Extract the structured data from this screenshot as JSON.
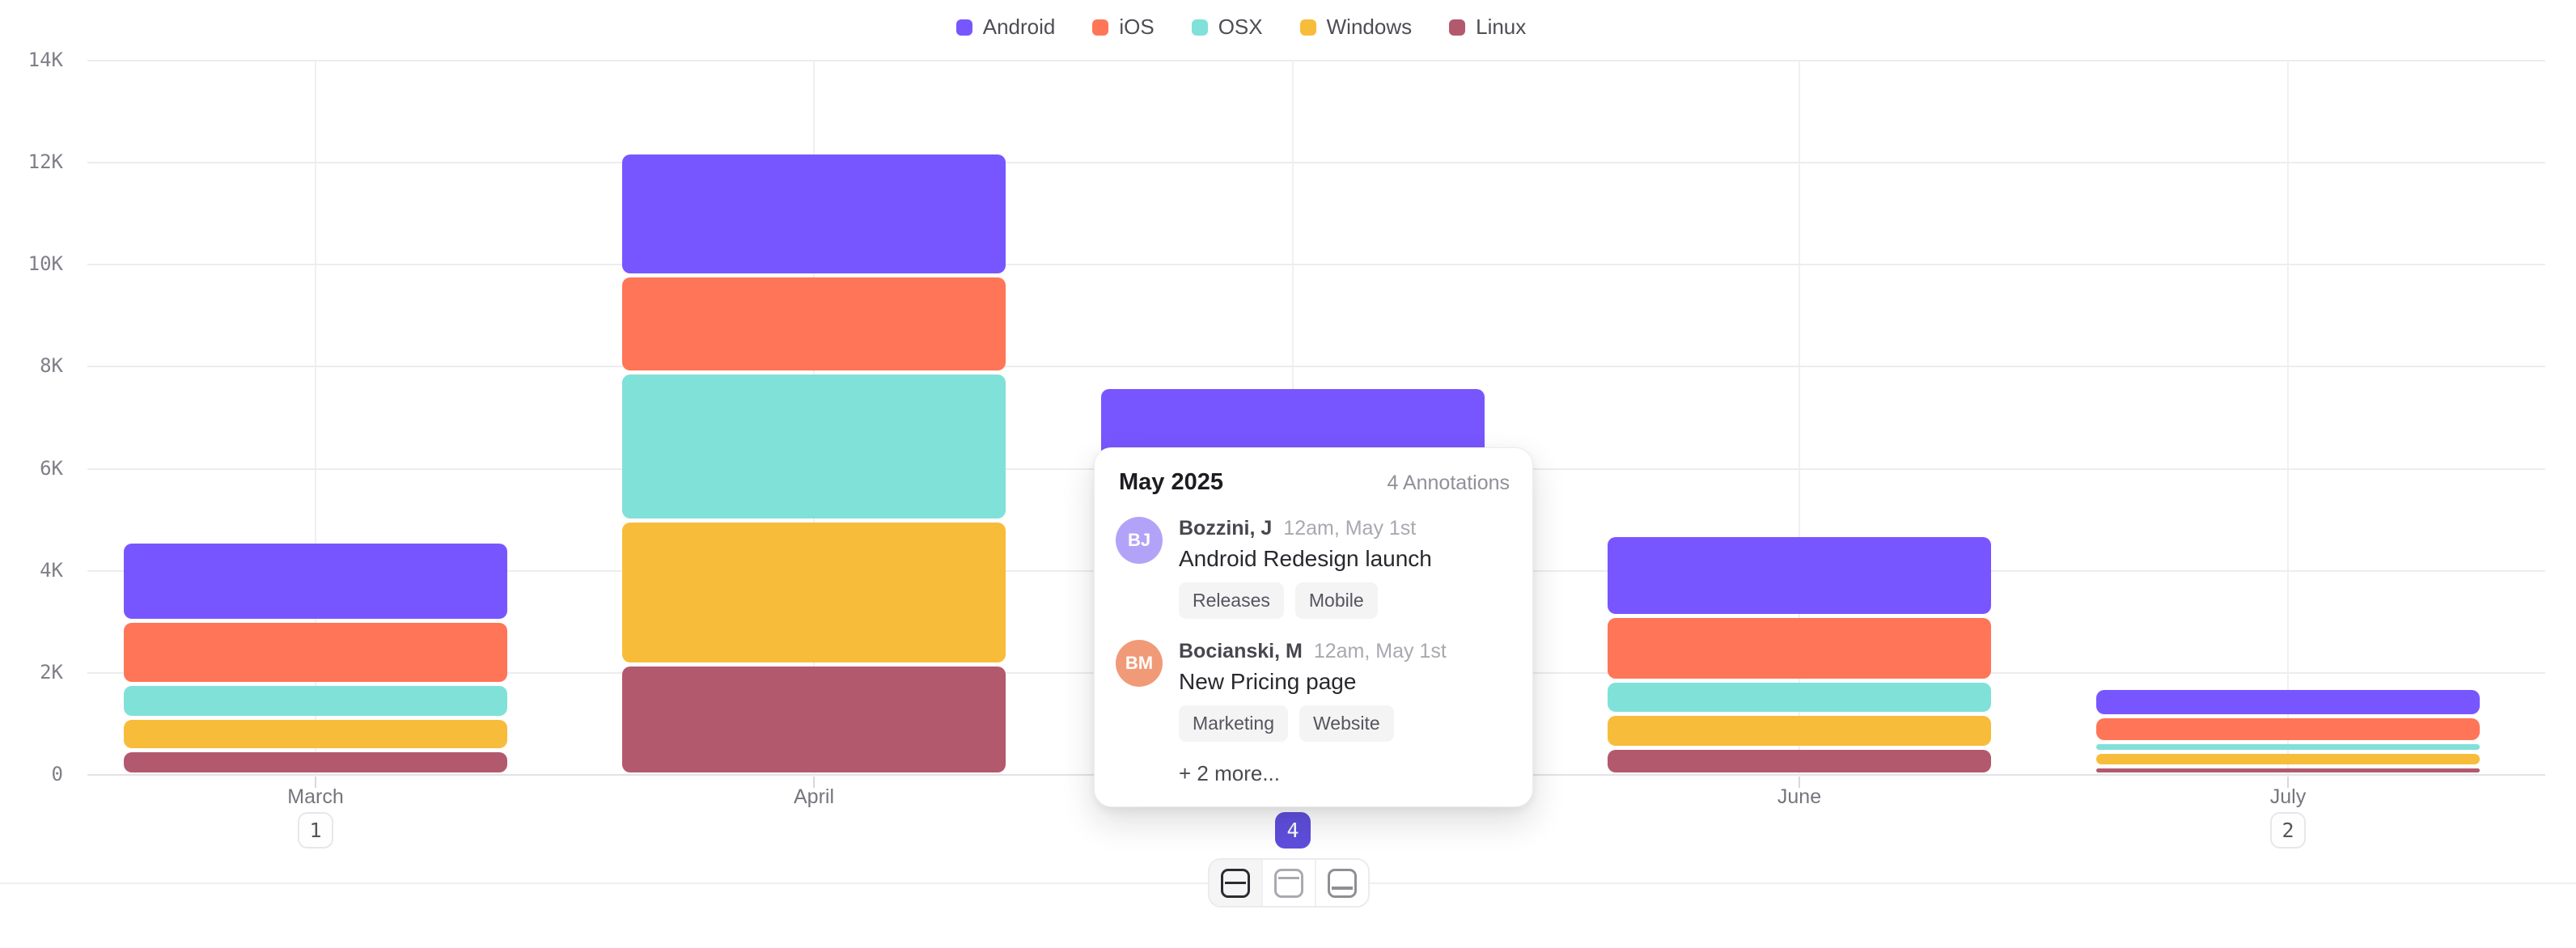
{
  "chart_data": {
    "type": "bar",
    "stacked": true,
    "title": "",
    "categories": [
      "March",
      "April",
      "May",
      "June",
      "July"
    ],
    "series": [
      {
        "name": "Android",
        "color": "#7856FF",
        "values": [
          1560,
          2410,
          2300,
          1580,
          540
        ]
      },
      {
        "name": "iOS",
        "color": "#FF7557",
        "values": [
          1230,
          1900,
          1750,
          1270,
          520
        ]
      },
      {
        "name": "OSX",
        "color": "#80E1D9",
        "values": [
          670,
          2900,
          1500,
          650,
          190
        ]
      },
      {
        "name": "Windows",
        "color": "#F8BC3B",
        "values": [
          630,
          2820,
          1300,
          670,
          280
        ]
      },
      {
        "name": "Linux",
        "color": "#B2596E",
        "values": [
          480,
          2160,
          750,
          520,
          160
        ]
      }
    ],
    "stack_order_bottom_to_top": [
      "Linux",
      "Windows",
      "OSX",
      "iOS",
      "Android"
    ],
    "y_ticks": [
      "0",
      "2K",
      "4K",
      "6K",
      "8K",
      "10K",
      "12K",
      "14K"
    ],
    "ylim": [
      0,
      14000
    ],
    "grid": true,
    "legend_position": "top"
  },
  "x_axis_badges": [
    {
      "category": "March",
      "label": "1",
      "active": false
    },
    {
      "category": "May",
      "label": "4",
      "active": true
    },
    {
      "category": "July",
      "label": "2",
      "active": false
    }
  ],
  "colors": {
    "badge_active_bg": "#5E4EDC",
    "badge_active_text": "#FFFFFF",
    "gridline": "#EDEDF0",
    "axis_line": "#E3E3E7"
  },
  "popover": {
    "title": "May 2025",
    "count_label": "4 Annotations",
    "annotations": [
      {
        "initials": "BJ",
        "avatar_color": "#B3A3F8",
        "author": "Bozzini, J",
        "time": "12am, May 1st",
        "text": "Android Redesign launch",
        "tags": [
          "Releases",
          "Mobile"
        ]
      },
      {
        "initials": "BM",
        "avatar_color": "#F19A77",
        "author": "Bocianski, M",
        "time": "12am, May 1st",
        "text": "New Pricing page",
        "tags": [
          "Marketing",
          "Website"
        ]
      }
    ],
    "more_label": "+ 2 more..."
  },
  "footer": {
    "view_buttons": [
      {
        "icon": "split-rows-icon",
        "active": true
      },
      {
        "icon": "top-panel-icon",
        "active": false
      },
      {
        "icon": "bottom-panel-icon",
        "active": false
      }
    ]
  }
}
